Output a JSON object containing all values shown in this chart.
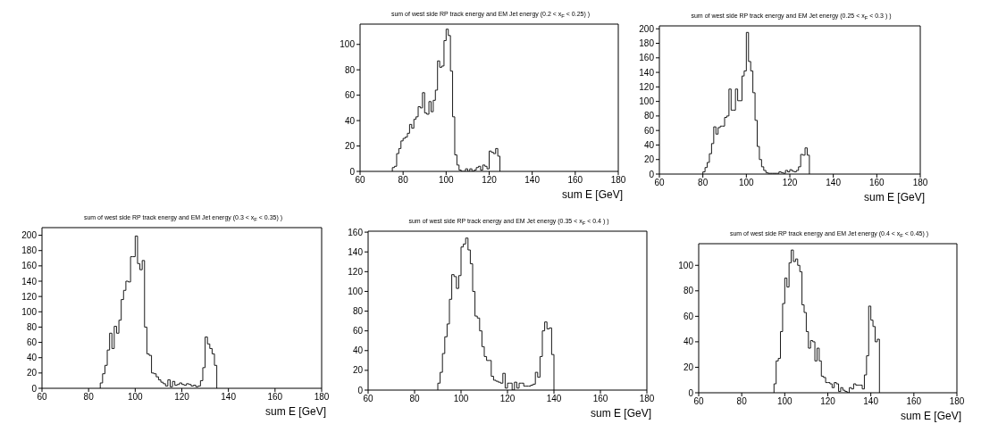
{
  "chart_data": [
    {
      "type": "histogram",
      "title": "sum of west side RP track energy and EM Jet energy (0.2 < x$_{F}$ < 0.25) )",
      "xlabel": "sum E [GeV]",
      "color": "#1a1a1a",
      "xlim": [
        60,
        180
      ],
      "xticks": [
        60,
        80,
        100,
        120,
        140,
        160,
        180
      ],
      "ylim": [
        0,
        116
      ],
      "yticks": [
        0,
        20,
        40,
        60,
        80,
        100
      ],
      "bins": [
        75,
        76,
        77,
        78,
        79,
        80,
        81,
        82,
        83,
        84,
        85,
        86,
        87,
        88,
        89,
        90,
        91,
        92,
        93,
        94,
        95,
        96,
        97,
        98,
        99,
        100,
        101,
        102,
        103,
        104,
        105,
        106,
        107,
        108,
        109,
        110,
        111,
        112,
        113,
        114,
        115,
        116,
        117,
        118,
        119,
        120,
        121,
        122,
        123,
        124,
        125
      ],
      "values": [
        3,
        4,
        14,
        18,
        24,
        26,
        27,
        30,
        37,
        34,
        41,
        43,
        51,
        50,
        62,
        46,
        45,
        55,
        47,
        56,
        64,
        87,
        82,
        83,
        103,
        112,
        107,
        79,
        43,
        13,
        5,
        1,
        0,
        0,
        2,
        0,
        2,
        0,
        1,
        3,
        4,
        1,
        5,
        4,
        2,
        16,
        15,
        14,
        18,
        12
      ]
    },
    {
      "type": "histogram",
      "title": "sum of west side RP track energy and EM Jet energy (0.25 < x$_{F}$ < 0.3 ) )",
      "xlabel": "sum E [GeV]",
      "color": "#1a1a1a",
      "xlim": [
        60,
        180
      ],
      "xticks": [
        60,
        80,
        100,
        120,
        140,
        160,
        180
      ],
      "ylim": [
        0,
        204
      ],
      "yticks": [
        0,
        20,
        40,
        60,
        80,
        100,
        120,
        140,
        160,
        180,
        200
      ],
      "bins": [
        80,
        81,
        82,
        83,
        84,
        85,
        86,
        87,
        88,
        89,
        90,
        91,
        92,
        93,
        94,
        95,
        96,
        97,
        98,
        99,
        100,
        101,
        102,
        103,
        104,
        105,
        106,
        107,
        108,
        109,
        110,
        111,
        112,
        113,
        114,
        115,
        116,
        117,
        118,
        119,
        120,
        121,
        122,
        123,
        124,
        125,
        126,
        127,
        128,
        129
      ],
      "values": [
        3,
        9,
        16,
        28,
        42,
        65,
        55,
        64,
        66,
        66,
        78,
        80,
        117,
        88,
        88,
        117,
        101,
        101,
        135,
        142,
        195,
        155,
        142,
        112,
        74,
        38,
        20,
        10,
        5,
        2,
        1,
        1,
        1,
        1,
        1,
        3,
        2,
        1,
        5,
        3,
        6,
        4,
        3,
        5,
        10,
        27,
        26,
        36,
        26
      ]
    },
    {
      "type": "histogram",
      "title": "sum of west side RP track energy and EM Jet energy (0.3 < x$_{F}$ < 0.35) )",
      "xlabel": "sum E [GeV]",
      "color": "#1a1a1a",
      "xlim": [
        60,
        180
      ],
      "xticks": [
        60,
        80,
        100,
        120,
        140,
        160,
        180
      ],
      "ylim": [
        0,
        210
      ],
      "yticks": [
        0,
        20,
        40,
        60,
        80,
        100,
        120,
        140,
        160,
        180,
        200
      ],
      "bins": [
        85,
        86,
        87,
        88,
        89,
        90,
        91,
        92,
        93,
        94,
        95,
        96,
        97,
        98,
        99,
        100,
        101,
        102,
        103,
        104,
        105,
        106,
        107,
        108,
        109,
        110,
        111,
        112,
        113,
        114,
        115,
        116,
        117,
        118,
        119,
        120,
        121,
        122,
        123,
        124,
        125,
        126,
        127,
        128,
        129,
        130,
        131,
        132,
        133,
        134,
        135
      ],
      "values": [
        7,
        19,
        30,
        50,
        72,
        52,
        81,
        72,
        89,
        116,
        128,
        140,
        139,
        172,
        172,
        199,
        163,
        155,
        167,
        80,
        45,
        43,
        20,
        19,
        15,
        11,
        8,
        6,
        3,
        11,
        2,
        9,
        4,
        5,
        7,
        5,
        4,
        6,
        5,
        3,
        4,
        2,
        3,
        10,
        27,
        67,
        58,
        52,
        45,
        30
      ]
    },
    {
      "type": "histogram",
      "title": "sum of west side RP track energy and EM Jet energy (0.35 < x$_{F}$ < 0.4 ) )",
      "xlabel": "sum E [GeV]",
      "color": "#1a1a1a",
      "xlim": [
        60,
        180
      ],
      "xticks": [
        60,
        80,
        100,
        120,
        140,
        160,
        180
      ],
      "ylim": [
        0,
        161
      ],
      "yticks": [
        0,
        20,
        40,
        60,
        80,
        100,
        120,
        140,
        160
      ],
      "bins": [
        90,
        91,
        92,
        93,
        94,
        95,
        96,
        97,
        98,
        99,
        100,
        101,
        102,
        103,
        104,
        105,
        106,
        107,
        108,
        109,
        110,
        111,
        112,
        113,
        114,
        115,
        116,
        117,
        118,
        119,
        120,
        121,
        122,
        123,
        124,
        125,
        126,
        127,
        128,
        129,
        130,
        131,
        132,
        133,
        134,
        135,
        136,
        137,
        138,
        139,
        140
      ],
      "values": [
        7,
        18,
        37,
        54,
        67,
        92,
        117,
        115,
        103,
        116,
        145,
        148,
        154,
        142,
        128,
        100,
        75,
        73,
        60,
        44,
        34,
        30,
        30,
        14,
        10,
        9,
        8,
        7,
        17,
        2,
        7,
        7,
        0,
        8,
        2,
        7,
        7,
        4,
        4,
        4,
        5,
        6,
        18,
        13,
        34,
        60,
        69,
        62,
        63,
        36
      ]
    },
    {
      "type": "histogram",
      "title": "sum of west side RP track energy and EM Jet energy (0.4 < x$_{F}$ < 0.45) )",
      "xlabel": "sum E [GeV]",
      "color": "#1a1a1a",
      "xlim": [
        60,
        180
      ],
      "xticks": [
        60,
        80,
        100,
        120,
        140,
        160,
        180
      ],
      "ylim": [
        0,
        117
      ],
      "yticks": [
        0,
        20,
        40,
        60,
        80,
        100
      ],
      "bins": [
        95,
        96,
        97,
        98,
        99,
        100,
        101,
        102,
        103,
        104,
        105,
        106,
        107,
        108,
        109,
        110,
        111,
        112,
        113,
        114,
        115,
        116,
        117,
        118,
        119,
        120,
        121,
        122,
        123,
        124,
        125,
        126,
        127,
        128,
        129,
        130,
        131,
        132,
        133,
        134,
        135,
        136,
        137,
        138,
        139,
        140,
        141,
        142,
        143,
        144
      ],
      "values": [
        7,
        25,
        27,
        48,
        70,
        90,
        83,
        102,
        112,
        103,
        105,
        100,
        95,
        69,
        63,
        48,
        35,
        41,
        40,
        25,
        35,
        25,
        13,
        12,
        8,
        8,
        7,
        4,
        8,
        7,
        1,
        4,
        2,
        1,
        0,
        4,
        3,
        7,
        6,
        6,
        6,
        3,
        14,
        29,
        68,
        57,
        52,
        40,
        42
      ]
    }
  ]
}
